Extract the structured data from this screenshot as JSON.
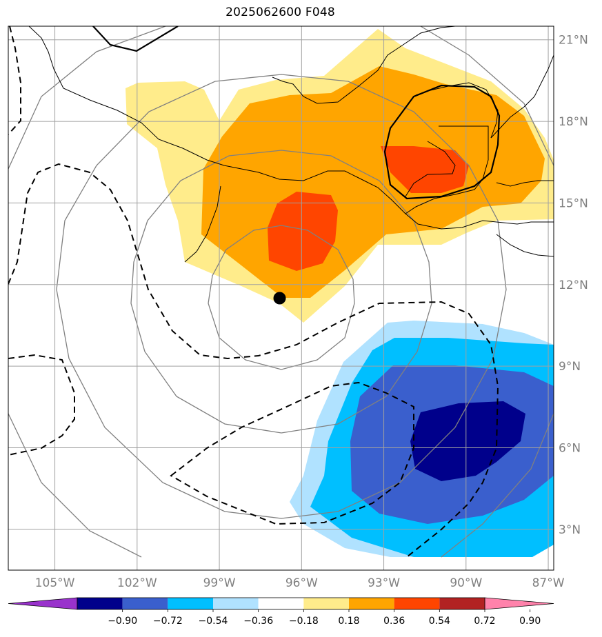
{
  "title": "2025062600 F048",
  "map": {
    "projection": "lat-lon",
    "lon_range": [
      -106.7,
      -86.8
    ],
    "lat_range": [
      1.5,
      21.5
    ],
    "lon_ticks": [
      {
        "value": -105,
        "label": "105°W"
      },
      {
        "value": -102,
        "label": "102°W"
      },
      {
        "value": -99,
        "label": "99°W"
      },
      {
        "value": -96,
        "label": "96°W"
      },
      {
        "value": -93,
        "label": "93°W"
      },
      {
        "value": -90,
        "label": "90°W"
      },
      {
        "value": -87,
        "label": "87°W"
      }
    ],
    "lat_ticks": [
      {
        "value": 21,
        "label": "21°N"
      },
      {
        "value": 18,
        "label": "18°N"
      },
      {
        "value": 15,
        "label": "15°N"
      },
      {
        "value": 12,
        "label": "12°N"
      },
      {
        "value": 9,
        "label": "9°N"
      },
      {
        "value": 6,
        "label": "6°N"
      },
      {
        "value": 3,
        "label": "3°N"
      }
    ],
    "grid": true,
    "grid_color": "#a0a0a0",
    "label_color": "#7f7f7f",
    "storm_center": {
      "lon": -96.8,
      "lat": 11.5
    }
  },
  "colorbar": {
    "levels": [
      "−0.90",
      "−0.72",
      "−0.54",
      "−0.36",
      "−0.18",
      "0.18",
      "0.36",
      "0.54",
      "0.72",
      "0.90"
    ],
    "colors": [
      "#9932cc",
      "#00008b",
      "#3a5fcd",
      "#00bfff",
      "#b0e2ff",
      "#ffffff",
      "#ffec8b",
      "#ffa500",
      "#ff4500",
      "#b22222",
      "#ff82ab"
    ],
    "extend": "both"
  },
  "fields": {
    "positive_colors": {
      "light": "#ffec8b",
      "mid": "#ffa500",
      "high": "#ff4500"
    },
    "negative_colors": {
      "light": "#b0e2ff",
      "mid": "#00bfff",
      "strong": "#3a5fcd",
      "max": "#00008b"
    },
    "range_ring_color": "#808080",
    "coast_color": "#000000"
  }
}
